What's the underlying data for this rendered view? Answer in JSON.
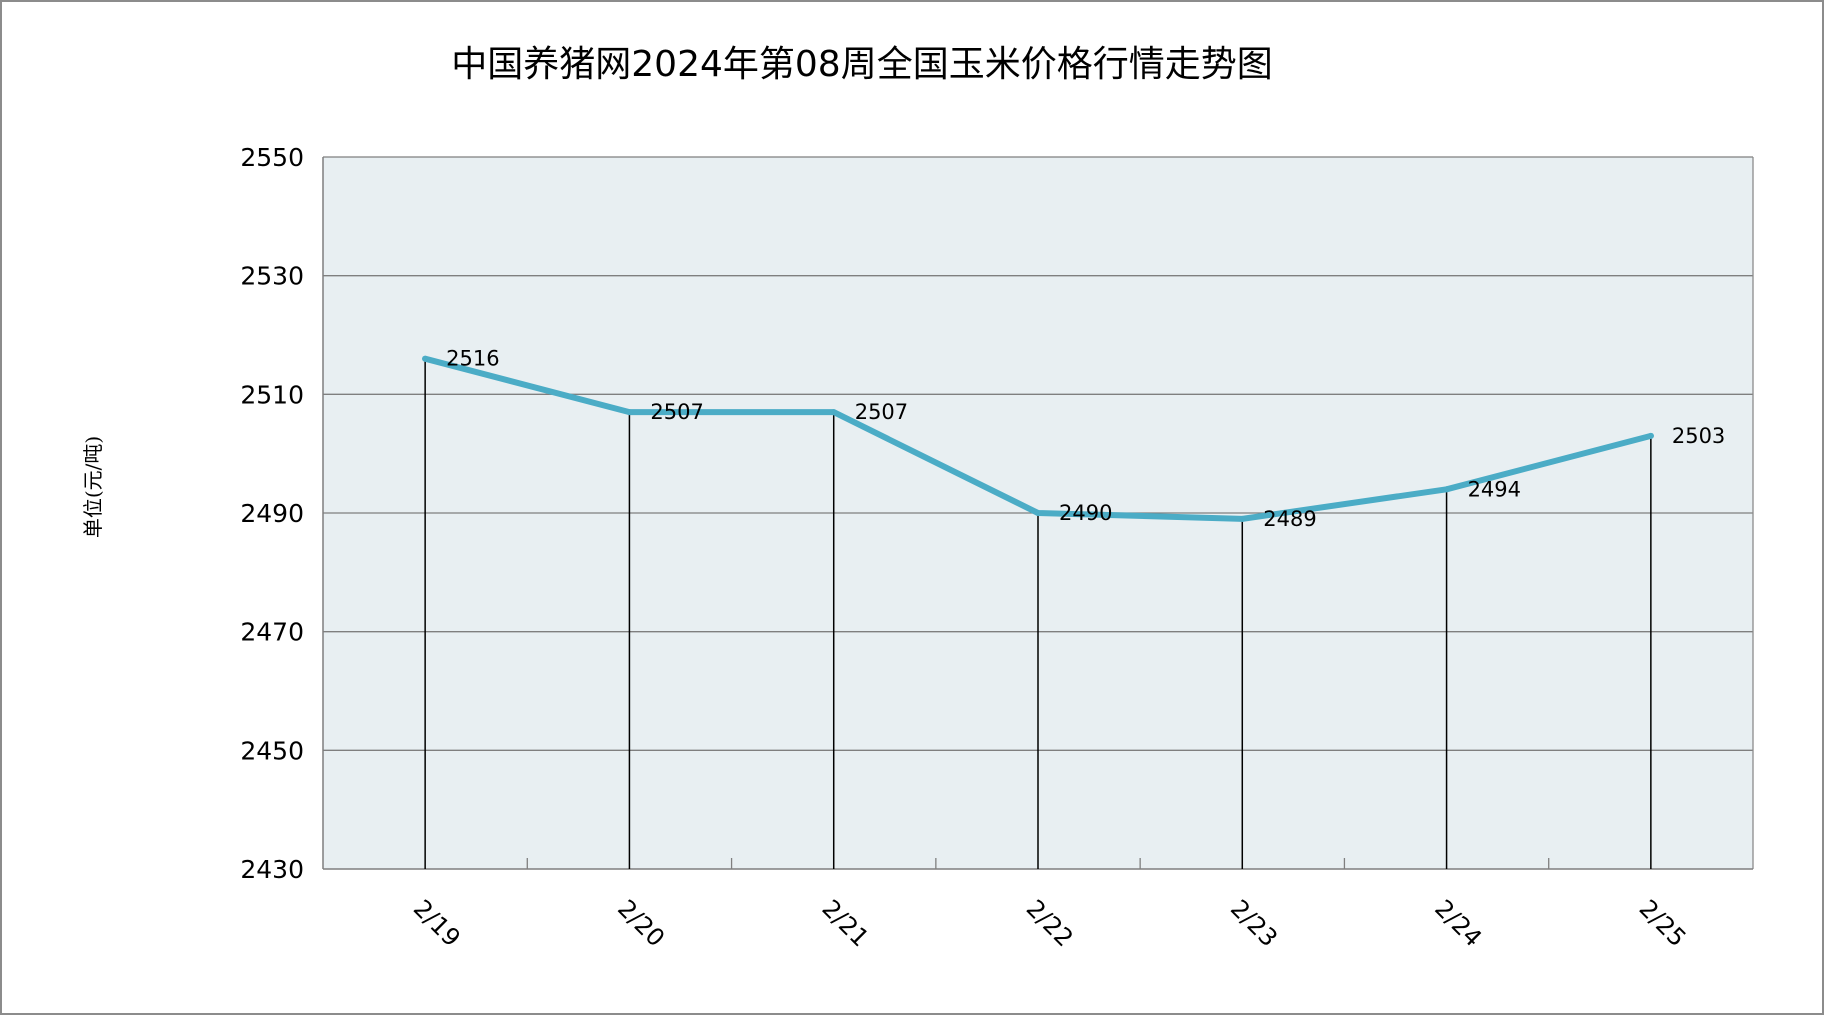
{
  "chart_data": {
    "type": "line",
    "title": "中国养猪网2024年第08周全国玉米价格行情走势图",
    "ylabel": "单位(元/吨)",
    "xlabel": "",
    "categories": [
      "2/19",
      "2/20",
      "2/21",
      "2/22",
      "2/23",
      "2/24",
      "2/25"
    ],
    "series": [
      {
        "values": [
          2516,
          2507,
          2507,
          2490,
          2489,
          2494,
          2503
        ],
        "color": "#4bacc6"
      }
    ],
    "data_labels": [
      "2516",
      "2507",
      "2507",
      "2490",
      "2489",
      "2494",
      "2503"
    ],
    "ylim": [
      2430,
      2550
    ],
    "yticks": [
      2430,
      2450,
      2470,
      2490,
      2510,
      2530,
      2550
    ],
    "ytick_labels": [
      "2430",
      "2450",
      "2470",
      "2490",
      "2510",
      "2530",
      "2550"
    ],
    "grid": true,
    "drop_lines": true,
    "legend": "none",
    "plot_background": "#e8eff2",
    "grid_color": "#7f7f7f",
    "border_color": "#8c8c8c"
  }
}
